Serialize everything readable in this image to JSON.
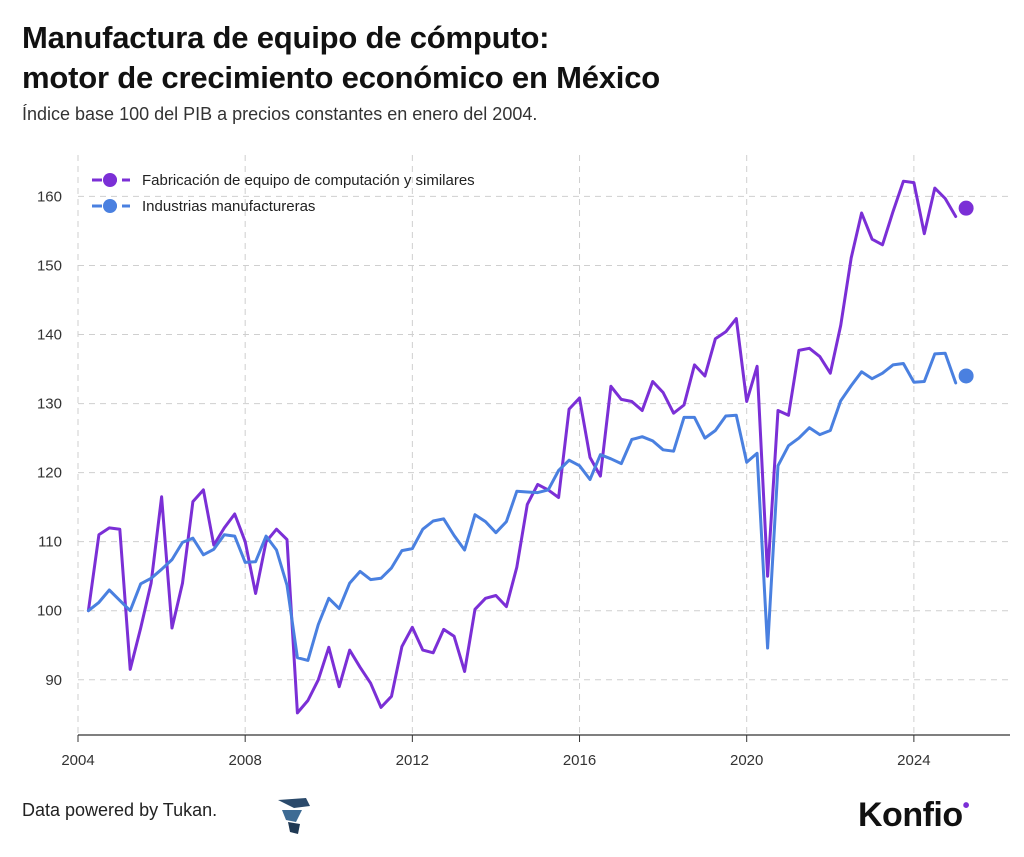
{
  "header": {
    "title_line1": "Manufactura de equipo de cómputo:",
    "title_line2": "motor de crecimiento económico en México",
    "subtitle": "Índice base 100 del PIB a precios constantes en enero del 2004."
  },
  "footer": {
    "credit": "Data powered by Tukan.",
    "brand": "Konfío",
    "brand_main": "Konfio",
    "brand_dot": "•"
  },
  "colors": {
    "computo": "#7b2fd6",
    "manufactura": "#4a80e0",
    "grid": "#cfcfcf",
    "axis": "#333333"
  },
  "chart_data": {
    "type": "line",
    "x_unit": "year",
    "xlim": [
      2004,
      2026.3
    ],
    "ylim": [
      82,
      166
    ],
    "x_ticks": [
      2004,
      2008,
      2012,
      2016,
      2020,
      2024
    ],
    "y_ticks": [
      90,
      100,
      110,
      120,
      130,
      140,
      150,
      160
    ],
    "grid": true,
    "legend_position": "top-left",
    "series": [
      {
        "name": "Fabricación de equipo de computación y similares",
        "color": "#7b2fd6",
        "x": [
          2004.25,
          2004.5,
          2004.75,
          2005.0,
          2005.25,
          2005.5,
          2005.75,
          2006.0,
          2006.25,
          2006.5,
          2006.75,
          2007.0,
          2007.25,
          2007.5,
          2007.75,
          2008.0,
          2008.25,
          2008.5,
          2008.75,
          2009.0,
          2009.25,
          2009.5,
          2009.75,
          2010.0,
          2010.25,
          2010.5,
          2010.75,
          2011.0,
          2011.25,
          2011.5,
          2011.75,
          2012.0,
          2012.25,
          2012.5,
          2012.75,
          2013.0,
          2013.25,
          2013.5,
          2013.75,
          2014.0,
          2014.25,
          2014.5,
          2014.75,
          2015.0,
          2015.25,
          2015.5,
          2015.75,
          2016.0,
          2016.25,
          2016.5,
          2016.75,
          2017.0,
          2017.25,
          2017.5,
          2017.75,
          2018.0,
          2018.25,
          2018.5,
          2018.75,
          2019.0,
          2019.25,
          2019.5,
          2019.75,
          2020.0,
          2020.25,
          2020.5,
          2020.75,
          2021.0,
          2021.25,
          2021.5,
          2021.75,
          2022.0,
          2022.25,
          2022.5,
          2022.75,
          2023.0,
          2023.25,
          2023.5,
          2023.75,
          2024.0,
          2024.25,
          2024.5,
          2024.75,
          2025.0
        ],
        "values": [
          100.0,
          111.0,
          112.0,
          111.8,
          91.5,
          97.5,
          104.0,
          116.5,
          97.5,
          104.0,
          115.8,
          117.5,
          109.5,
          112.0,
          114.0,
          110.0,
          102.5,
          110.0,
          111.8,
          110.3,
          85.2,
          87.0,
          90.0,
          94.7,
          89.0,
          94.3,
          91.8,
          89.5,
          86.0,
          87.6,
          94.8,
          97.6,
          94.3,
          93.9,
          97.3,
          96.3,
          91.2,
          100.2,
          101.8,
          102.2,
          100.6,
          106.3,
          115.4,
          118.3,
          117.5,
          116.4,
          129.2,
          130.8,
          122.2,
          119.5,
          132.5,
          130.6,
          130.3,
          129.0,
          133.2,
          131.6,
          128.6,
          129.8,
          135.6,
          134.0,
          139.4,
          140.4,
          142.3,
          130.3,
          135.4,
          105.0,
          129.0,
          128.3,
          137.7,
          138.0,
          136.8,
          134.4,
          141.3,
          151.1,
          157.6,
          153.8,
          153.0,
          157.8,
          162.2,
          162.0,
          154.6,
          161.2,
          159.7,
          157.1
        ],
        "last_point": {
          "x": 2025.25,
          "value": 158.3
        }
      },
      {
        "name": "Industrias manufactureras",
        "color": "#4a80e0",
        "x": [
          2004.25,
          2004.5,
          2004.75,
          2005.0,
          2005.25,
          2005.5,
          2005.75,
          2006.0,
          2006.25,
          2006.5,
          2006.75,
          2007.0,
          2007.25,
          2007.5,
          2007.75,
          2008.0,
          2008.25,
          2008.5,
          2008.75,
          2009.0,
          2009.25,
          2009.5,
          2009.75,
          2010.0,
          2010.25,
          2010.5,
          2010.75,
          2011.0,
          2011.25,
          2011.5,
          2011.75,
          2012.0,
          2012.25,
          2012.5,
          2012.75,
          2013.0,
          2013.25,
          2013.5,
          2013.75,
          2014.0,
          2014.25,
          2014.5,
          2014.75,
          2015.0,
          2015.25,
          2015.5,
          2015.75,
          2016.0,
          2016.25,
          2016.5,
          2016.75,
          2017.0,
          2017.25,
          2017.5,
          2017.75,
          2018.0,
          2018.25,
          2018.5,
          2018.75,
          2019.0,
          2019.25,
          2019.5,
          2019.75,
          2020.0,
          2020.25,
          2020.5,
          2020.75,
          2021.0,
          2021.25,
          2021.5,
          2021.75,
          2022.0,
          2022.25,
          2022.5,
          2022.75,
          2023.0,
          2023.25,
          2023.5,
          2023.75,
          2024.0,
          2024.25,
          2024.5,
          2024.75,
          2025.0
        ],
        "values": [
          100.0,
          101.2,
          103.0,
          101.5,
          100.0,
          103.9,
          104.7,
          106.0,
          107.4,
          109.9,
          110.5,
          108.1,
          108.9,
          111.0,
          110.8,
          107.0,
          107.1,
          110.8,
          108.8,
          103.7,
          93.2,
          92.8,
          98.0,
          101.8,
          100.3,
          104.0,
          105.7,
          104.5,
          104.7,
          106.2,
          108.7,
          109.0,
          111.8,
          113.0,
          113.3,
          110.9,
          108.8,
          113.9,
          112.9,
          111.3,
          112.9,
          117.3,
          117.2,
          117.1,
          117.5,
          120.3,
          121.8,
          121.0,
          119.0,
          122.6,
          122.0,
          121.3,
          124.8,
          125.2,
          124.6,
          123.3,
          123.1,
          128.0,
          128.0,
          125.0,
          126.1,
          128.2,
          128.3,
          121.5,
          122.8,
          94.6,
          121.0,
          123.9,
          125.0,
          126.5,
          125.5,
          126.1,
          130.4,
          132.6,
          134.6,
          133.6,
          134.4,
          135.6,
          135.8,
          133.1,
          133.2,
          137.2,
          137.3,
          133.0
        ],
        "last_point": {
          "x": 2025.25,
          "value": 134.0
        }
      }
    ]
  }
}
